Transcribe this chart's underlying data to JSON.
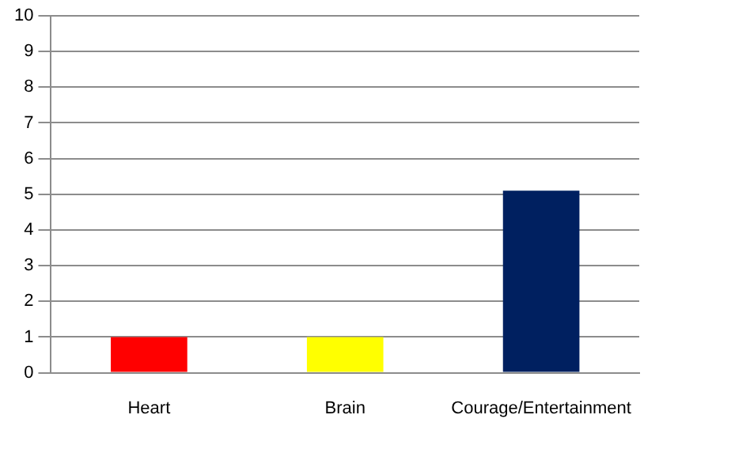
{
  "chart_data": {
    "type": "bar",
    "categories": [
      "Heart",
      "Brain",
      "Courage/Entertainment"
    ],
    "values": [
      1,
      1,
      5.1
    ],
    "colors": [
      "#ff0000",
      "#ffff00",
      "#002060"
    ],
    "ylim": [
      0,
      10
    ],
    "yticks": [
      0,
      1,
      2,
      3,
      4,
      5,
      6,
      7,
      8,
      9,
      10
    ],
    "grid": "y",
    "legend": false
  }
}
